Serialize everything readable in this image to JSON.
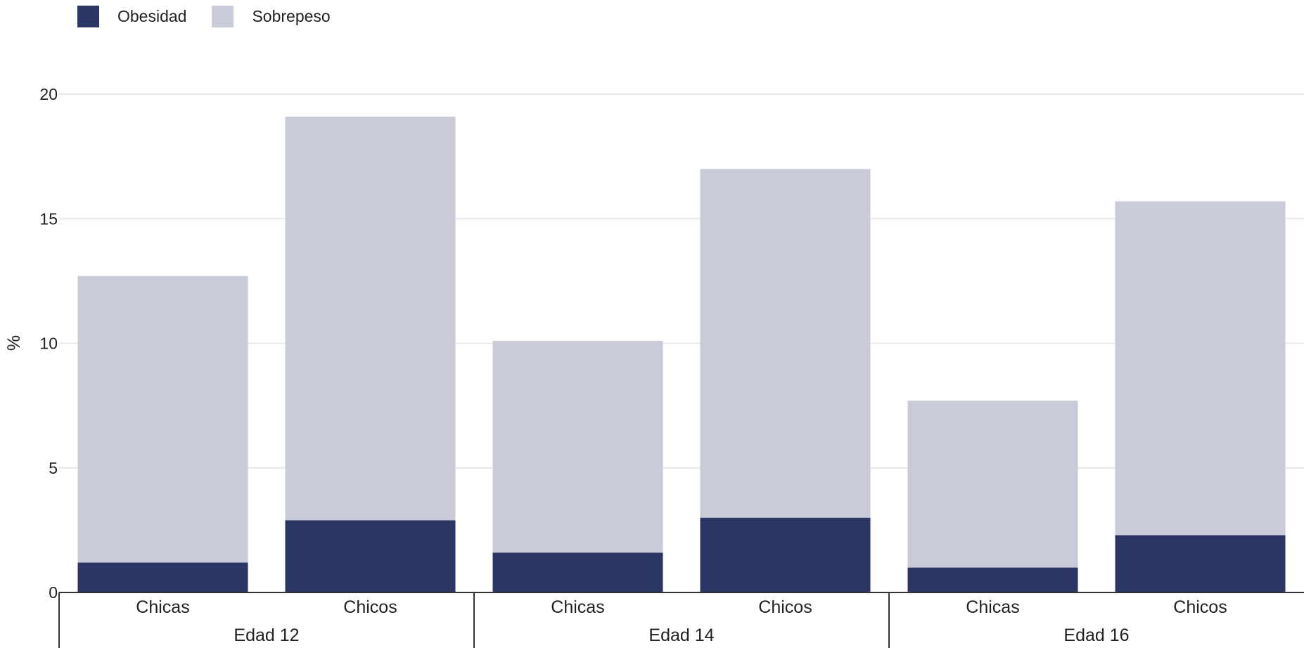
{
  "chart_data": {
    "type": "bar",
    "stacked": true,
    "ylabel": "%",
    "ylim": [
      0,
      20
    ],
    "yticks": [
      0,
      5,
      10,
      15,
      20
    ],
    "grid": true,
    "legend_position": "top-left",
    "groups": [
      "Edad 12",
      "Edad 14",
      "Edad 16"
    ],
    "categories": [
      "Chicas",
      "Chicos",
      "Chicas",
      "Chicos",
      "Chicas",
      "Chicos"
    ],
    "series": [
      {
        "name": "Obesidad",
        "color": "#2b3665",
        "values": [
          1.2,
          2.9,
          1.6,
          3.0,
          1.0,
          2.3
        ]
      },
      {
        "name": "Sobrepeso",
        "color": "#c9ccd8",
        "values": [
          11.5,
          16.2,
          8.5,
          14.0,
          6.7,
          13.4
        ]
      }
    ]
  }
}
